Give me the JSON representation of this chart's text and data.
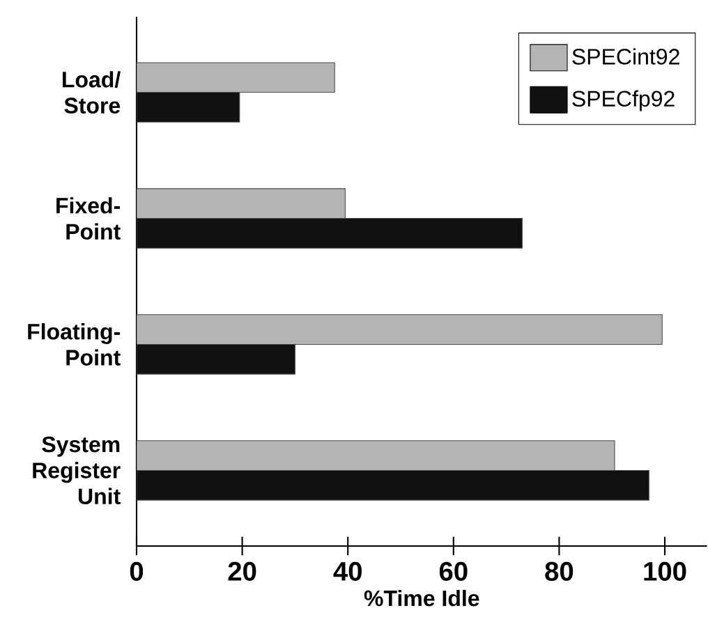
{
  "chart_data": {
    "type": "bar",
    "orientation": "horizontal",
    "xlabel": "%Time Idle",
    "categories": [
      "Load/ Store",
      "Fixed-Point",
      "Floating-Point",
      "System Register Unit"
    ],
    "series": [
      {
        "name": "SPECint92",
        "color": "#b4b4b4",
        "values": [
          37.5,
          39.5,
          99.5,
          90.5
        ]
      },
      {
        "name": "SPECfp92",
        "color": "#111111",
        "values": [
          19.5,
          73,
          30,
          97
        ]
      }
    ],
    "xlim": [
      0,
      108
    ],
    "xticks": [
      0,
      20,
      40,
      60,
      80,
      100
    ],
    "legend": "top right"
  }
}
